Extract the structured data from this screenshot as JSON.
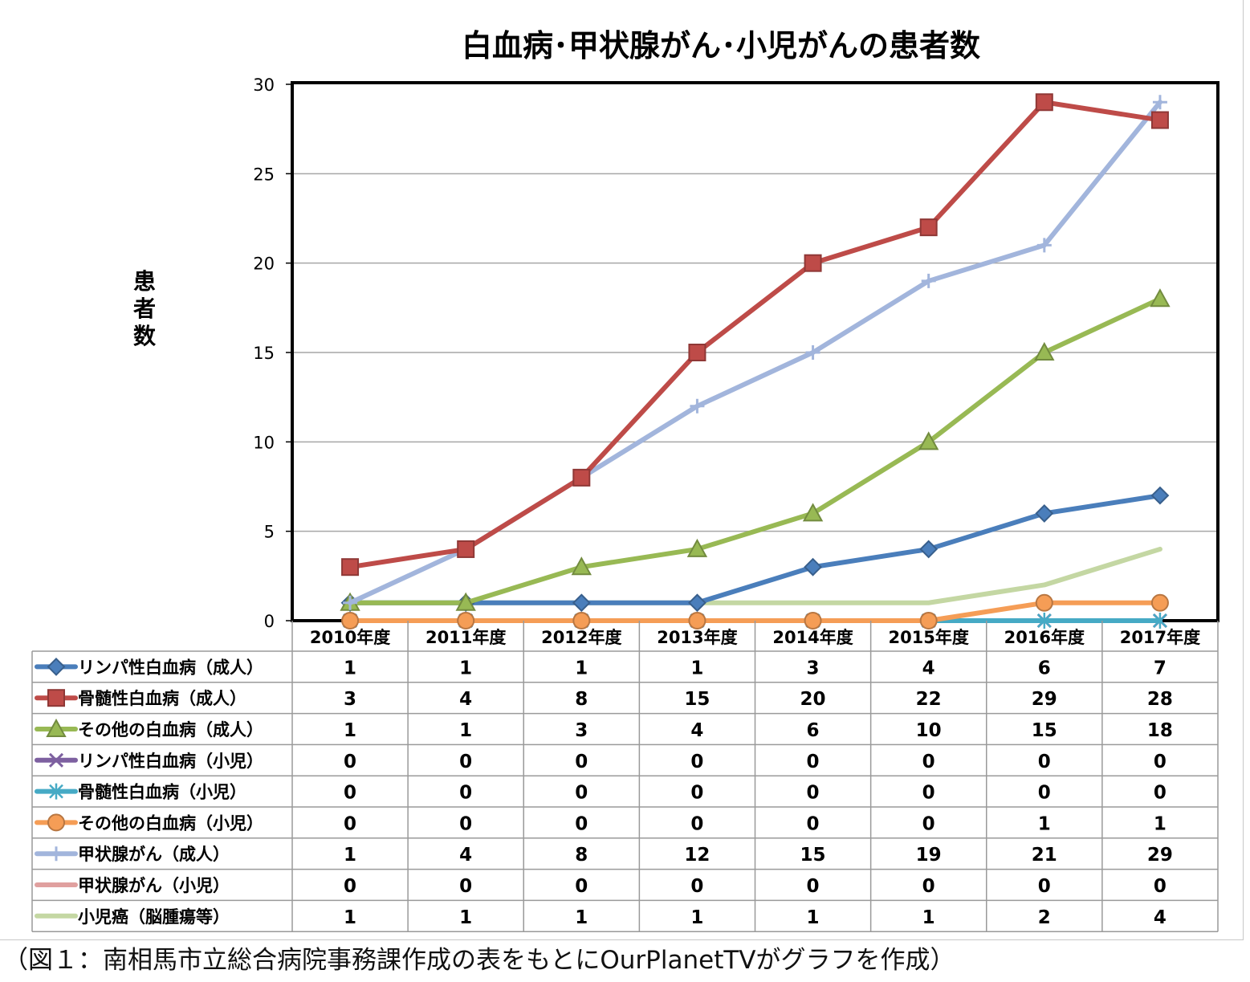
{
  "chart_data": {
    "type": "line",
    "title": "白血病･甲状腺がん･小児がんの患者数",
    "ylabel": "患者数",
    "xlabel": "",
    "ylim": [
      0,
      30
    ],
    "yticks": [
      "0",
      "5",
      "10",
      "15",
      "20",
      "25",
      "30"
    ],
    "grid": true,
    "categories": [
      "2010年度",
      "2011年度",
      "2012年度",
      "2013年度",
      "2014年度",
      "2015年度",
      "2016年度",
      "2017年度"
    ],
    "series": [
      {
        "name": "リンパ性白血病（成人）",
        "values": [
          1,
          1,
          1,
          1,
          3,
          4,
          6,
          7
        ],
        "color": "#4a7ebb",
        "marker": "diamond"
      },
      {
        "name": "骨髄性白血病（成人）",
        "values": [
          3,
          4,
          8,
          15,
          20,
          22,
          29,
          28
        ],
        "color": "#be4b48",
        "marker": "square"
      },
      {
        "name": "その他の白血病（成人）",
        "values": [
          1,
          1,
          3,
          4,
          6,
          10,
          15,
          18
        ],
        "color": "#98b954",
        "marker": "triangle"
      },
      {
        "name": "リンパ性白血病（小児）",
        "values": [
          0,
          0,
          0,
          0,
          0,
          0,
          0,
          0
        ],
        "color": "#7d60a0",
        "marker": "x"
      },
      {
        "name": "骨髄性白血病（小児）",
        "values": [
          0,
          0,
          0,
          0,
          0,
          0,
          0,
          0
        ],
        "color": "#46aac5",
        "marker": "star"
      },
      {
        "name": "その他の白血病（小児）",
        "values": [
          0,
          0,
          0,
          0,
          0,
          0,
          1,
          1
        ],
        "color": "#f59d56",
        "marker": "circle"
      },
      {
        "name": "甲状腺がん（成人）",
        "values": [
          1,
          4,
          8,
          12,
          15,
          19,
          21,
          29
        ],
        "color": "#a2b5dc",
        "marker": "plus"
      },
      {
        "name": "甲状腺がん（小児）",
        "values": [
          0,
          0,
          0,
          0,
          0,
          0,
          0,
          0
        ],
        "color": "#e0a09f",
        "marker": "none"
      },
      {
        "name": "小児癌（脳腫瘍等）",
        "values": [
          1,
          1,
          1,
          1,
          1,
          1,
          2,
          4
        ],
        "color": "#c4d7a3",
        "marker": "none"
      }
    ]
  },
  "caption": "（図１：南相馬市立総合病院事務課作成の表をもとにOurPlanetTVがグラフを作成）"
}
